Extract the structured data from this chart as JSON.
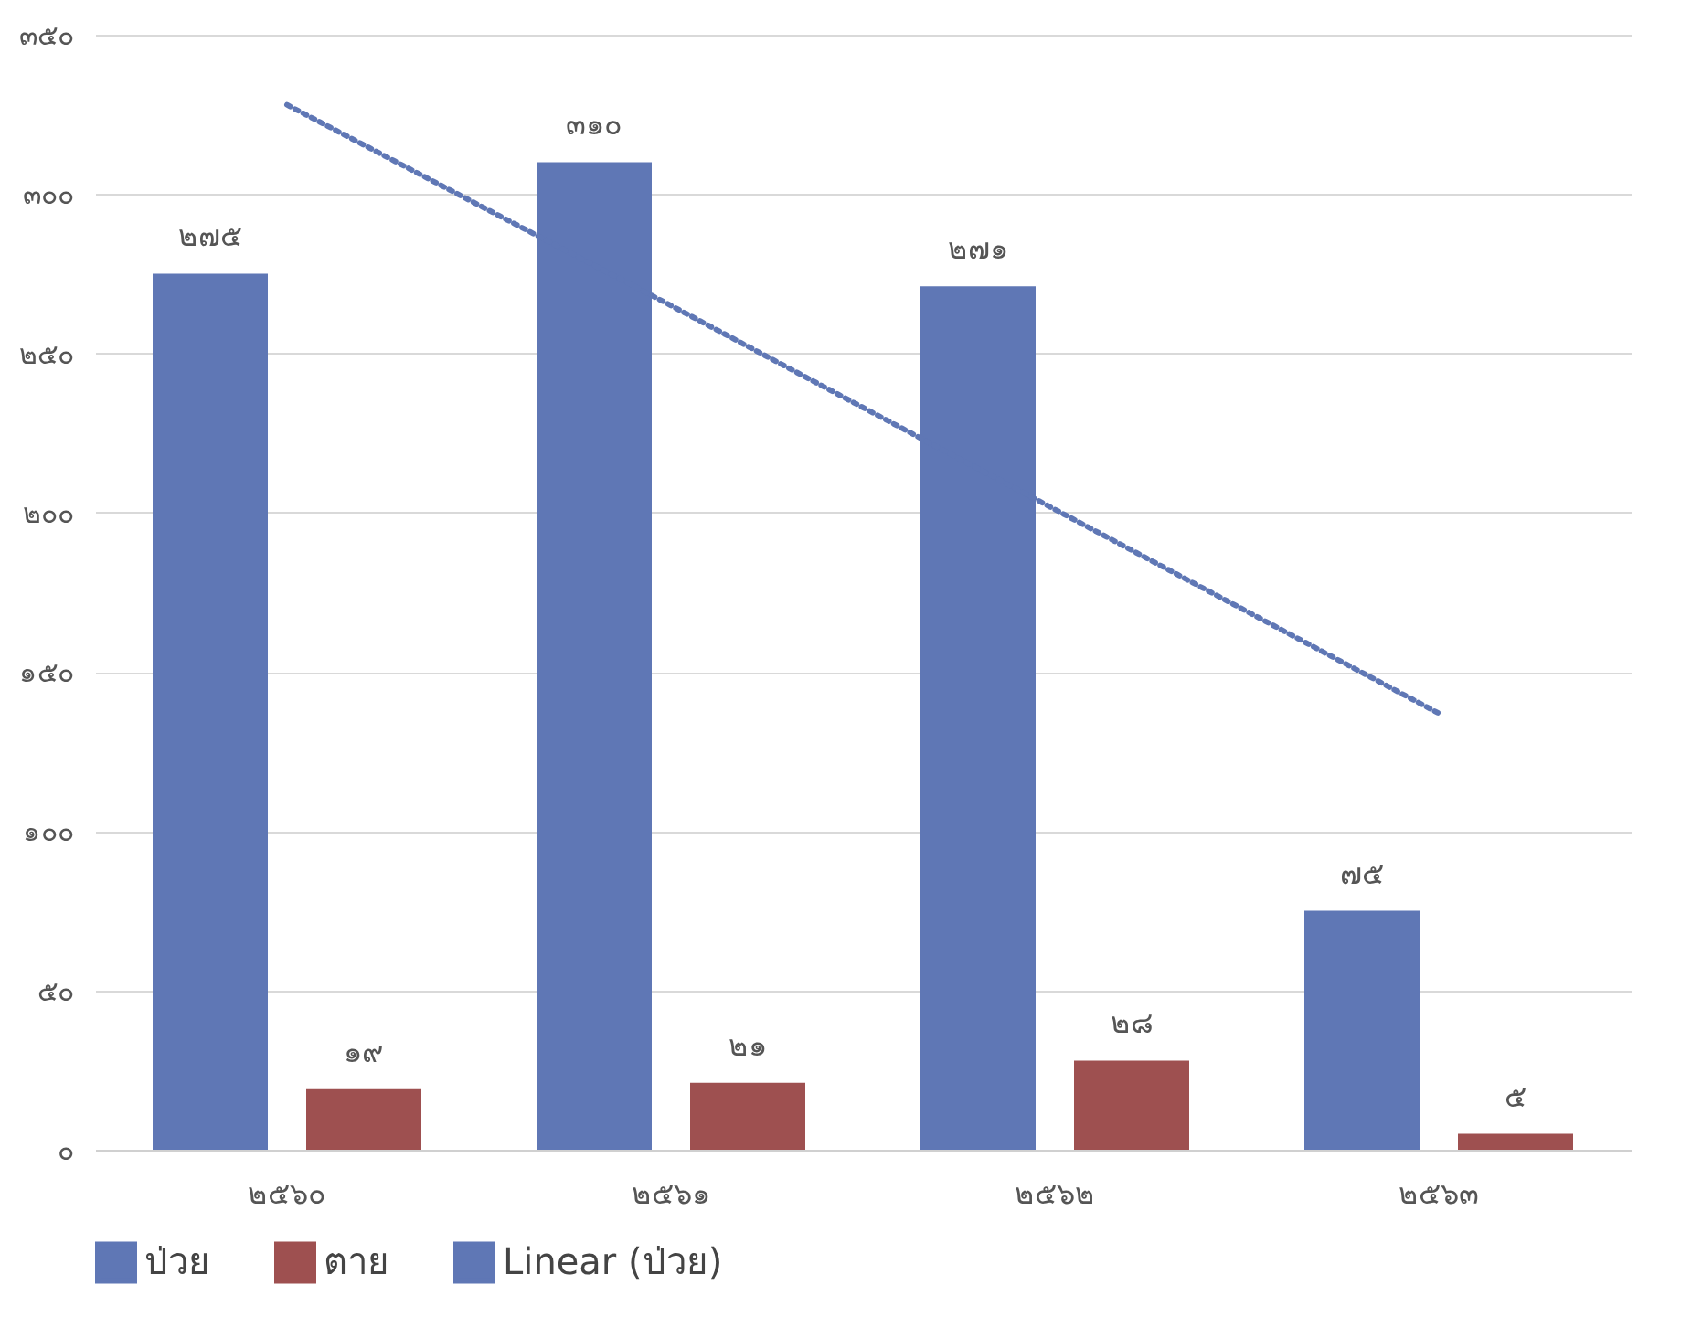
{
  "chart_data": {
    "type": "bar",
    "categories": [
      "๒๕๖๐",
      "๒๕๖๑",
      "๒๕๖๒",
      "๒๕๖๓"
    ],
    "series": [
      {
        "name": "ป่วย",
        "color": "#5f77b5",
        "values": [
          275,
          310,
          271,
          75
        ],
        "value_labels": [
          "๒๗๕",
          "๓๑๐",
          "๒๗๑",
          "๗๕"
        ]
      },
      {
        "name": "ตาย",
        "color": "#9e5050",
        "values": [
          19,
          21,
          28,
          5
        ],
        "value_labels": [
          "๑๙",
          "๒๑",
          "๒๘",
          "๕"
        ]
      },
      {
        "name": "Linear (ป่วย)",
        "type": "line",
        "color": "#5f77b5",
        "line_style": "dotted",
        "values": [
          328,
          265,
          201,
          137
        ]
      }
    ],
    "ylim": [
      0,
      350
    ],
    "yticks": [
      {
        "value": 0,
        "label": "๐"
      },
      {
        "value": 50,
        "label": "๕๐"
      },
      {
        "value": 100,
        "label": "๑๐๐"
      },
      {
        "value": 150,
        "label": "๑๕๐"
      },
      {
        "value": 200,
        "label": "๒๐๐"
      },
      {
        "value": 250,
        "label": "๒๕๐"
      },
      {
        "value": 300,
        "label": "๓๐๐"
      },
      {
        "value": 350,
        "label": "๓๕๐"
      }
    ],
    "grid": "y",
    "legend": "bottom"
  }
}
